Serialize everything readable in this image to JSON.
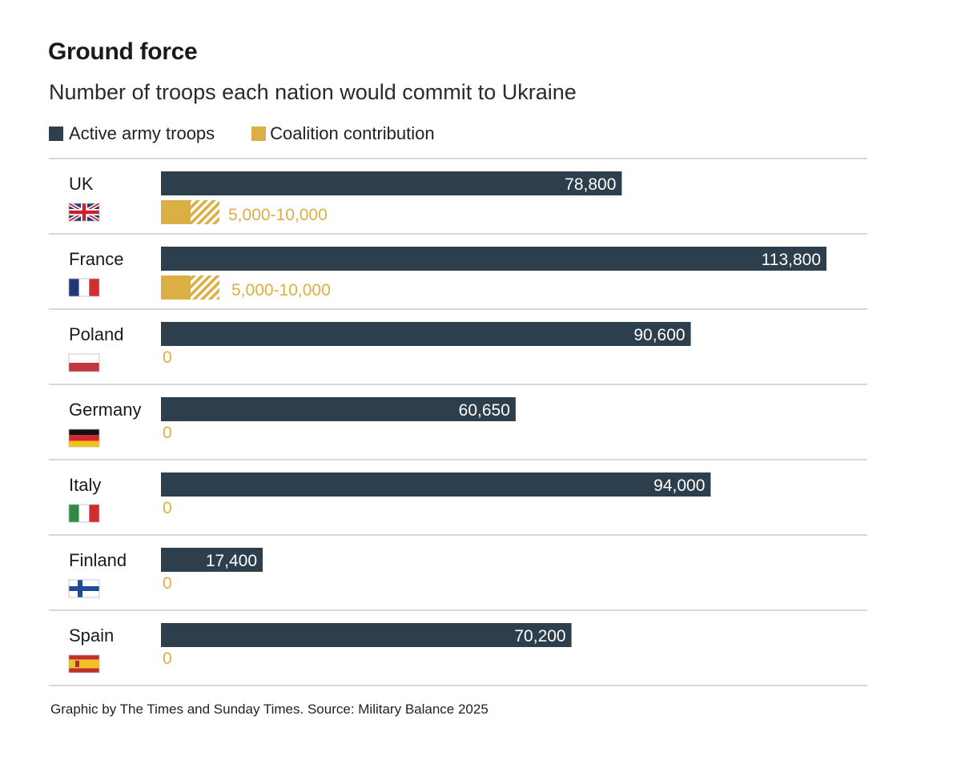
{
  "header": {
    "title": "Ground force",
    "subtitle": "Number of troops each nation would commit to Ukraine"
  },
  "legend": {
    "active_label": "Active army troops",
    "coalition_label": "Coalition contribution"
  },
  "colors": {
    "active": "#2d3e4d",
    "coalition": "#dcaf45",
    "divider": "#cccccc"
  },
  "chart_data": {
    "type": "bar",
    "title": "Ground force",
    "subtitle": "Number of troops each nation would commit to Ukraine",
    "xlabel": "",
    "ylabel": "",
    "xlim": [
      0,
      113800
    ],
    "grid": false,
    "legend_position": "top-left",
    "categories": [
      "UK",
      "France",
      "Poland",
      "Germany",
      "Italy",
      "Finland",
      "Spain"
    ],
    "flags": [
      "uk-flag",
      "france-flag",
      "poland-flag",
      "germany-flag",
      "italy-flag",
      "finland-flag",
      "spain-flag"
    ],
    "series": [
      {
        "name": "Active army troops",
        "values": [
          78800,
          113800,
          90600,
          60650,
          94000,
          17400,
          70200
        ],
        "labels": [
          "78,800",
          "113,800",
          "90,600",
          "60,650",
          "94,000",
          "17,400",
          "70,200"
        ]
      },
      {
        "name": "Coalition contribution",
        "range_low": [
          5000,
          5000,
          0,
          0,
          0,
          0,
          0
        ],
        "range_high": [
          10000,
          10000,
          0,
          0,
          0,
          0,
          0
        ],
        "labels": [
          "5,000-10,000",
          "5,000-10,000",
          "0",
          "0",
          "0",
          "0",
          "0"
        ]
      }
    ]
  },
  "footer": {
    "source": "Graphic by The Times and Sunday Times. Source: Military Balance 2025"
  }
}
